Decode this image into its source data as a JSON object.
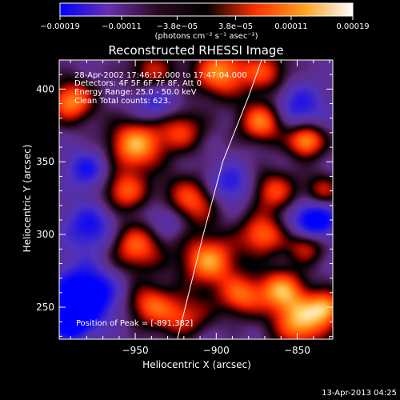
{
  "chart_data": {
    "type": "heatmap",
    "title": "Reconstructed RHESSI Image",
    "xlabel": "Heliocentric X (arcsec)",
    "ylabel": "Heliocentric Y (arcsec)",
    "xlim": [
      -997,
      -828
    ],
    "ylim": [
      228,
      420
    ],
    "x_ticks": [
      -950,
      -900,
      -850
    ],
    "x_tick_labels": [
      "−950",
      "−900",
      "−850"
    ],
    "y_ticks": [
      250,
      300,
      350,
      400
    ],
    "y_tick_labels": [
      "250",
      "300",
      "350",
      "400"
    ],
    "colorbar": {
      "range": [
        -0.00019,
        0.00019
      ],
      "ticks": [
        -0.00019,
        -0.00011,
        -3.8e-05,
        3.8e-05,
        0.00011,
        0.00019
      ],
      "tick_labels": [
        "−0.00019",
        "−0.00011",
        "−3.8e−05",
        "3.8e−05",
        "0.00011",
        "0.00019"
      ],
      "unit_label": "(photons cm⁻² s⁻¹ asec⁻²)",
      "colors": [
        "#0000ff",
        "#6a2fb0",
        "#2a0a20",
        "#000000",
        "#ff3000",
        "#ffa020",
        "#ffffff"
      ]
    },
    "info_lines": [
      "28-Apr-2002 17:46:12.000 to 17:47:04.000",
      "Detectors: 4F 5F 6F 7F 8F, Att 0",
      "Energy Range: 25.0 - 50.0 keV",
      "Clean    Total counts: 623."
    ],
    "peak_label": "Position of Peak = [-891,382]",
    "peak": [
      -891,
      382
    ],
    "limb_line": [
      [
        -924,
        228
      ],
      [
        -908,
        300
      ],
      [
        -896,
        350
      ],
      [
        -880,
        395
      ],
      [
        -872,
        420
      ]
    ],
    "blobs": [
      [
        -990,
        392,
        10,
        0.85
      ],
      [
        -940,
        412,
        10,
        0.55
      ],
      [
        -898,
        412,
        12,
        0.85
      ],
      [
        -870,
        412,
        10,
        0.6
      ],
      [
        -950,
        362,
        12,
        0.95
      ],
      [
        -922,
        372,
        10,
        0.6
      ],
      [
        -872,
        378,
        10,
        0.85
      ],
      [
        -845,
        365,
        8,
        0.95
      ],
      [
        -957,
        330,
        10,
        0.7
      ],
      [
        -918,
        322,
        12,
        0.8
      ],
      [
        -865,
        330,
        10,
        0.65
      ],
      [
        -835,
        330,
        8,
        0.55
      ],
      [
        -950,
        292,
        12,
        0.75
      ],
      [
        -905,
        282,
        12,
        0.9
      ],
      [
        -872,
        300,
        10,
        0.75
      ],
      [
        -845,
        292,
        8,
        0.6
      ],
      [
        -942,
        252,
        10,
        0.65
      ],
      [
        -885,
        258,
        10,
        0.7
      ],
      [
        -860,
        262,
        10,
        0.85
      ],
      [
        -920,
        240,
        12,
        0.9
      ],
      [
        -848,
        240,
        12,
        0.95
      ],
      [
        -832,
        250,
        8,
        0.75
      ],
      [
        -978,
        305,
        12,
        -0.55
      ],
      [
        -982,
        258,
        14,
        -0.95
      ],
      [
        -930,
        312,
        10,
        -0.5
      ],
      [
        -938,
        392,
        10,
        -0.45
      ],
      [
        -892,
        335,
        10,
        -0.5
      ],
      [
        -840,
        310,
        10,
        -0.8
      ],
      [
        -850,
        388,
        12,
        -0.5
      ],
      [
        -918,
        232,
        12,
        -0.45
      ],
      [
        -990,
        238,
        8,
        -0.6
      ],
      [
        -980,
        345,
        10,
        -0.5
      ]
    ]
  },
  "footer": {
    "timestamp": "13-Apr-2013 04:25"
  }
}
